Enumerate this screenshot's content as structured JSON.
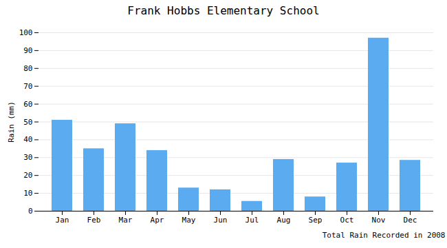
{
  "chart_data": {
    "type": "bar",
    "title": "Frank Hobbs Elementary School",
    "xlabel": "Total Rain Recorded in 2008",
    "ylabel": "Rain (mm)",
    "categories": [
      "Jan",
      "Feb",
      "Mar",
      "Apr",
      "May",
      "Jun",
      "Jul",
      "Aug",
      "Sep",
      "Oct",
      "Nov",
      "Dec"
    ],
    "values": [
      51,
      35,
      49,
      34,
      13,
      12,
      5.5,
      29,
      8,
      27,
      97,
      28.5
    ],
    "color": "#5aabf0",
    "ylim": [
      0,
      100
    ],
    "yticks": [
      0,
      10,
      20,
      30,
      40,
      50,
      60,
      70,
      80,
      90,
      100
    ],
    "grid": true
  }
}
